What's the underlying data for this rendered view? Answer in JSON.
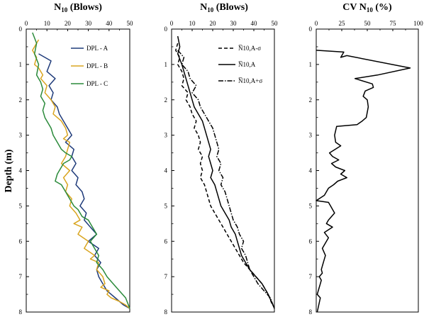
{
  "chart_data": [
    {
      "type": "line",
      "title_main": "N",
      "title_sub": "10",
      "title_rest": " (Blows)",
      "ylabel": "Depth (m)",
      "xlim": [
        0,
        50
      ],
      "ylim": [
        0,
        8
      ],
      "xticks": [
        0,
        10,
        20,
        30,
        40,
        50
      ],
      "yticks": [
        0,
        1,
        2,
        3,
        4,
        5,
        6,
        7,
        8
      ],
      "legend": "top-right",
      "series": [
        {
          "name": "DPL - A",
          "color": "#1f3b7a",
          "x": [
            6,
            12,
            10,
            14,
            11,
            13,
            12,
            15,
            16,
            18,
            20,
            22,
            19,
            23,
            22,
            24,
            22,
            25,
            24,
            27,
            28,
            26,
            29,
            28,
            31,
            34,
            30,
            35,
            33,
            36,
            34,
            35,
            37,
            39,
            43,
            47,
            50
          ],
          "y": [
            0.7,
            0.9,
            1.2,
            1.4,
            1.6,
            1.8,
            2.0,
            2.2,
            2.4,
            2.6,
            2.8,
            3.0,
            3.2,
            3.4,
            3.6,
            3.8,
            4.0,
            4.2,
            4.4,
            4.6,
            4.8,
            5.0,
            5.2,
            5.4,
            5.6,
            5.8,
            6.0,
            6.2,
            6.4,
            6.6,
            6.8,
            7.0,
            7.2,
            7.4,
            7.6,
            7.8,
            7.9
          ]
        },
        {
          "name": "DPL - B",
          "color": "#d9a520",
          "x": [
            6,
            3,
            5,
            4,
            6,
            8,
            7,
            10,
            9,
            12,
            14,
            13,
            17,
            19,
            20,
            18,
            21,
            20,
            19,
            17,
            21,
            18,
            20,
            19,
            22,
            21,
            24,
            26,
            23,
            27,
            25,
            30,
            28,
            33,
            31,
            35,
            34,
            37,
            38,
            36,
            40,
            39,
            41,
            45,
            48,
            50
          ],
          "y": [
            0.3,
            0.6,
            0.8,
            1.0,
            1.1,
            1.3,
            1.4,
            1.6,
            1.8,
            2.0,
            2.2,
            2.4,
            2.6,
            2.8,
            3.0,
            3.1,
            3.2,
            3.4,
            3.6,
            3.8,
            4.0,
            4.2,
            4.4,
            4.6,
            4.8,
            5.0,
            5.2,
            5.4,
            5.5,
            5.6,
            5.8,
            6.0,
            6.2,
            6.4,
            6.5,
            6.6,
            6.8,
            7.0,
            7.2,
            7.3,
            7.4,
            7.5,
            7.6,
            7.7,
            7.8,
            7.9
          ]
        },
        {
          "name": "DPL - C",
          "color": "#2a8a3a",
          "x": [
            3,
            5,
            4,
            6,
            5,
            7,
            8,
            7,
            9,
            8,
            9,
            10,
            12,
            13,
            15,
            17,
            19,
            22,
            21,
            18,
            16,
            15,
            14,
            17,
            19,
            21,
            23,
            25,
            27,
            30,
            32,
            34,
            31,
            33,
            35,
            34,
            37,
            39,
            42,
            45,
            48,
            50
          ],
          "y": [
            0.1,
            0.4,
            0.7,
            1.0,
            1.3,
            1.5,
            1.7,
            1.9,
            2.1,
            2.3,
            2.5,
            2.6,
            2.8,
            3.0,
            3.2,
            3.4,
            3.5,
            3.6,
            3.7,
            3.8,
            4.0,
            4.1,
            4.3,
            4.4,
            4.6,
            4.8,
            5.0,
            5.1,
            5.3,
            5.4,
            5.6,
            5.8,
            6.0,
            6.2,
            6.4,
            6.6,
            6.8,
            7.0,
            7.2,
            7.4,
            7.6,
            7.9
          ]
        }
      ]
    },
    {
      "type": "line",
      "title_main": "N",
      "title_sub": "10",
      "title_rest": " (Blows)",
      "xlim": [
        0,
        50
      ],
      "ylim": [
        0,
        8
      ],
      "xticks": [
        0,
        10,
        20,
        30,
        40,
        50
      ],
      "yticks": [
        0,
        1,
        2,
        3,
        4,
        5,
        6,
        7,
        8
      ],
      "legend": "top-right",
      "series": [
        {
          "name": "N̅10,A-σ",
          "color": "#000000",
          "dash": "5,3",
          "x": [
            3,
            2,
            4,
            3,
            5,
            6,
            5,
            8,
            7,
            9,
            10,
            12,
            11,
            13,
            14,
            13,
            15,
            14,
            15,
            14,
            16,
            17,
            18,
            19,
            21,
            23,
            25,
            27,
            29,
            31,
            33,
            35,
            38,
            41,
            44,
            47,
            49
          ],
          "y": [
            0.4,
            0.6,
            0.8,
            1.0,
            1.2,
            1.4,
            1.6,
            1.8,
            2.0,
            2.2,
            2.4,
            2.6,
            2.8,
            3.0,
            3.2,
            3.4,
            3.6,
            3.8,
            4.0,
            4.2,
            4.4,
            4.6,
            4.8,
            5.0,
            5.2,
            5.4,
            5.6,
            5.8,
            6.0,
            6.2,
            6.4,
            6.6,
            6.8,
            7.0,
            7.2,
            7.5,
            7.8
          ]
        },
        {
          "name": "N̅10,A",
          "color": "#000000",
          "dash": "",
          "x": [
            3,
            4,
            3,
            5,
            6,
            7,
            8,
            9,
            10,
            11,
            13,
            15,
            16,
            17,
            18,
            19,
            18,
            19,
            20,
            19,
            21,
            22,
            23,
            24,
            26,
            28,
            29,
            31,
            32,
            33,
            34,
            36,
            38,
            41,
            44,
            47,
            50
          ],
          "y": [
            0.2,
            0.5,
            0.7,
            1.0,
            1.2,
            1.4,
            1.6,
            1.8,
            2.0,
            2.2,
            2.4,
            2.6,
            2.8,
            3.0,
            3.2,
            3.4,
            3.6,
            3.8,
            4.0,
            4.2,
            4.4,
            4.6,
            4.8,
            5.0,
            5.2,
            5.4,
            5.6,
            5.8,
            6.0,
            6.2,
            6.4,
            6.6,
            6.8,
            7.0,
            7.2,
            7.5,
            7.9
          ]
        },
        {
          "name": "N̅10,A+σ",
          "color": "#000000",
          "dash": "7,2,1.5,2",
          "x": [
            3,
            6,
            5,
            8,
            9,
            12,
            10,
            13,
            14,
            16,
            18,
            20,
            21,
            22,
            23,
            22,
            24,
            23,
            25,
            24,
            26,
            27,
            28,
            29,
            30,
            32,
            33,
            35,
            34,
            36,
            37,
            38,
            40,
            42,
            45,
            48,
            50
          ],
          "y": [
            0.6,
            0.8,
            1.0,
            1.2,
            1.4,
            1.6,
            1.8,
            2.0,
            2.2,
            2.4,
            2.6,
            2.8,
            3.0,
            3.2,
            3.4,
            3.6,
            3.8,
            4.0,
            4.2,
            4.4,
            4.6,
            4.8,
            5.0,
            5.2,
            5.4,
            5.6,
            5.8,
            6.0,
            6.2,
            6.4,
            6.6,
            6.8,
            7.0,
            7.2,
            7.4,
            7.6,
            7.9
          ]
        }
      ]
    },
    {
      "type": "line",
      "title_main": "CV N",
      "title_sub": "10",
      "title_rest": " (%)",
      "xlim": [
        0,
        100
      ],
      "ylim": [
        0,
        8
      ],
      "xticks": [
        0,
        25,
        50,
        75,
        100
      ],
      "yticks": [
        0,
        1,
        2,
        3,
        4,
        5,
        6,
        7,
        8
      ],
      "series": [
        {
          "name": "CV",
          "color": "#000000",
          "x": [
            0,
            27,
            24,
            30,
            92,
            60,
            38,
            55,
            56,
            48,
            46,
            50,
            51,
            49,
            45,
            40,
            20,
            18,
            19,
            24,
            13,
            16,
            22,
            15,
            19,
            28,
            24,
            30,
            21,
            17,
            12,
            8,
            0,
            12,
            14,
            18,
            12,
            10,
            16,
            8,
            12,
            10,
            6,
            9,
            8,
            6,
            5,
            6,
            3,
            5,
            4,
            3,
            1,
            4,
            1
          ],
          "y": [
            0.6,
            0.65,
            0.8,
            0.75,
            1.1,
            1.3,
            1.4,
            1.55,
            1.65,
            1.75,
            1.9,
            2.0,
            2.2,
            2.5,
            2.6,
            2.7,
            2.75,
            3.0,
            3.2,
            3.3,
            3.5,
            3.6,
            3.7,
            3.8,
            3.9,
            4.0,
            4.1,
            4.2,
            4.3,
            4.4,
            4.5,
            4.7,
            4.85,
            4.9,
            5.0,
            5.2,
            5.4,
            5.5,
            5.6,
            5.75,
            5.9,
            6.0,
            6.2,
            6.4,
            6.5,
            6.7,
            6.8,
            6.9,
            7.0,
            7.1,
            7.2,
            7.3,
            7.5,
            7.6,
            8.0
          ]
        }
      ]
    }
  ]
}
